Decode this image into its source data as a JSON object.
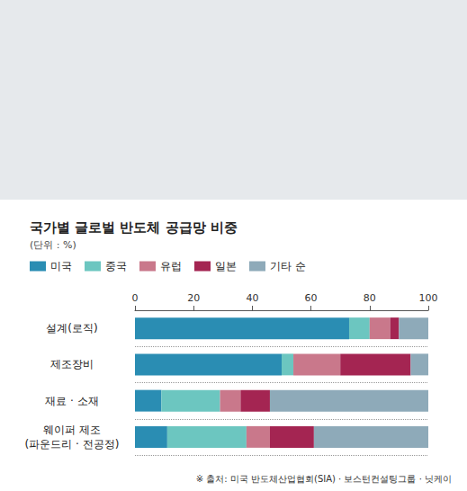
{
  "chart_data": {
    "type": "bar",
    "orientation": "horizontal",
    "stacked": true,
    "title": "국가별 글로벌 반도체 공급망 비중",
    "subtitle": "(단위 : %)",
    "source": "※ 출처: 미국 반도체산업협회(SIA) · 보스턴컨설팅그룹 · 닛케이",
    "categories": [
      "설계(로직)",
      "제조장비",
      "재료 · 소재",
      "웨이퍼 제조\n(파운드리 · 전공정)"
    ],
    "series": [
      {
        "name": "미국",
        "color": "#2a8db3",
        "values": [
          73,
          50,
          9,
          11
        ]
      },
      {
        "name": "중국",
        "color": "#6cc6c0",
        "values": [
          7,
          4,
          20,
          27
        ]
      },
      {
        "name": "유럽",
        "color": "#c9788b",
        "values": [
          7,
          16,
          7,
          8
        ]
      },
      {
        "name": "일본",
        "color": "#a42552",
        "values": [
          3,
          24,
          10,
          15
        ]
      },
      {
        "name": "기타 순",
        "color": "#8eaab9",
        "values": [
          10,
          6,
          54,
          39
        ]
      }
    ],
    "xlim": [
      0,
      100
    ],
    "xticks": [
      0,
      20,
      40,
      60,
      80,
      100
    ],
    "grid": false,
    "legend": "top-left"
  }
}
